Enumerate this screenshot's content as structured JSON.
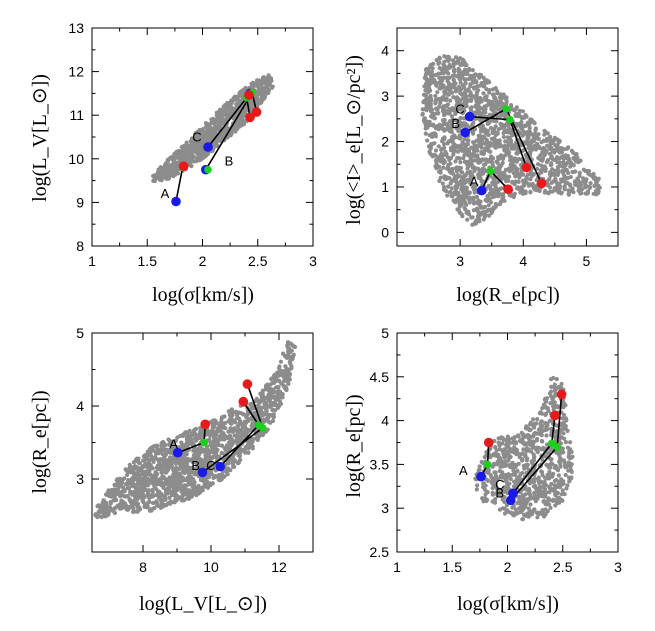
{
  "figure": {
    "description_type": "four-panel scatter of galaxy scaling relations"
  },
  "colors": {
    "cloud": "#8c8c8c",
    "line": "#000000",
    "blue": "#1a1ae6",
    "red": "#e61a1a",
    "green": "#1ad21a"
  },
  "chart_data": [
    {
      "type": "scatter",
      "id": "p1",
      "title": "",
      "xlabel": "log(σ[km/s])",
      "ylabel": "log(L_V[L_⊙])",
      "xlim": [
        1,
        3
      ],
      "ylim": [
        8,
        13
      ],
      "xticks": [
        "1",
        "1.5",
        "2",
        "2.5",
        "3"
      ],
      "yticks": [
        "8",
        "9",
        "10",
        "11",
        "12",
        "13"
      ],
      "cloud": {
        "polygon": [
          [
            1.55,
            9.45
          ],
          [
            1.7,
            9.55
          ],
          [
            1.95,
            9.9
          ],
          [
            2.2,
            10.4
          ],
          [
            2.45,
            10.95
          ],
          [
            2.55,
            11.35
          ],
          [
            2.65,
            11.7
          ],
          [
            2.6,
            11.95
          ],
          [
            2.45,
            11.75
          ],
          [
            2.25,
            11.35
          ],
          [
            2.0,
            10.75
          ],
          [
            1.8,
            10.25
          ],
          [
            1.65,
            9.9
          ],
          [
            1.55,
            9.6
          ]
        ],
        "count": 900
      },
      "series": [
        {
          "name": "blue",
          "points": [
            [
              1.76,
              9.02
            ],
            [
              2.03,
              9.75
            ],
            [
              2.05,
              10.27
            ],
            [
              2.43,
              11.5
            ]
          ]
        },
        {
          "name": "green",
          "points": [
            [
              1.82,
              9.8
            ],
            [
              2.05,
              9.75
            ],
            [
              2.4,
              11.4
            ],
            [
              2.45,
              11.52
            ]
          ]
        },
        {
          "name": "red",
          "points": [
            [
              1.83,
              9.83
            ],
            [
              2.43,
              10.95
            ],
            [
              2.49,
              11.07
            ],
            [
              2.42,
              11.46
            ]
          ]
        }
      ],
      "tracks": [
        {
          "label": "A",
          "points": [
            [
              1.76,
              9.02
            ],
            [
              1.82,
              9.8
            ],
            [
              1.83,
              9.83
            ]
          ]
        },
        {
          "label": "B",
          "points": [
            [
              2.03,
              9.75
            ],
            [
              2.45,
              11.52
            ],
            [
              2.49,
              11.07
            ]
          ]
        },
        {
          "label": "C",
          "points": [
            [
              2.05,
              10.27
            ],
            [
              2.4,
              11.4
            ],
            [
              2.43,
              10.95
            ]
          ]
        }
      ],
      "labels": [
        {
          "text": "A",
          "at": [
            1.66,
            9.1
          ]
        },
        {
          "text": "B",
          "at": [
            2.24,
            9.85
          ]
        },
        {
          "text": "C",
          "at": [
            1.95,
            10.4
          ]
        }
      ]
    },
    {
      "type": "scatter",
      "id": "p2",
      "title": "",
      "xlabel": "log(R_e[pc])",
      "ylabel": "log(<I>_e[L_⊙/pc²])",
      "xlim": [
        2,
        5.5
      ],
      "ylim": [
        -0.3,
        4.5
      ],
      "xticks": [
        "3",
        "4",
        "5"
      ],
      "yticks": [
        "0",
        "1",
        "2",
        "3",
        "4"
      ],
      "cloud": {
        "polygon": [
          [
            2.45,
            3.6
          ],
          [
            2.7,
            3.9
          ],
          [
            3.0,
            3.85
          ],
          [
            3.4,
            3.4
          ],
          [
            3.8,
            2.9
          ],
          [
            4.3,
            2.3
          ],
          [
            4.8,
            1.8
          ],
          [
            5.25,
            1.15
          ],
          [
            5.2,
            0.8
          ],
          [
            4.7,
            0.8
          ],
          [
            4.2,
            0.9
          ],
          [
            3.8,
            0.75
          ],
          [
            3.4,
            0.3
          ],
          [
            3.2,
            0.15
          ],
          [
            3.0,
            0.4
          ],
          [
            2.7,
            1.0
          ],
          [
            2.5,
            1.8
          ],
          [
            2.4,
            2.6
          ]
        ],
        "count": 1800
      },
      "series": [
        {
          "name": "blue",
          "points": [
            [
              3.34,
              0.92
            ],
            [
              3.08,
              2.2
            ],
            [
              3.15,
              2.55
            ]
          ]
        },
        {
          "name": "green",
          "points": [
            [
              3.48,
              1.35
            ],
            [
              3.73,
              2.72
            ],
            [
              3.79,
              2.48
            ]
          ]
        },
        {
          "name": "red",
          "points": [
            [
              3.76,
              0.95
            ],
            [
              4.05,
              1.43
            ],
            [
              4.29,
              1.08
            ]
          ]
        }
      ],
      "tracks": [
        {
          "label": "A",
          "points": [
            [
              3.34,
              0.92
            ],
            [
              3.48,
              1.35
            ],
            [
              3.76,
              0.95
            ]
          ]
        },
        {
          "label": "B",
          "points": [
            [
              3.08,
              2.2
            ],
            [
              3.73,
              2.72
            ],
            [
              4.29,
              1.08
            ]
          ]
        },
        {
          "label": "C",
          "points": [
            [
              3.15,
              2.55
            ],
            [
              3.79,
              2.48
            ],
            [
              4.05,
              1.43
            ]
          ]
        }
      ],
      "labels": [
        {
          "text": "A",
          "at": [
            3.22,
            1.02
          ]
        },
        {
          "text": "B",
          "at": [
            2.93,
            2.3
          ]
        },
        {
          "text": "C",
          "at": [
            3.0,
            2.62
          ]
        }
      ]
    },
    {
      "type": "scatter",
      "id": "p3",
      "title": "",
      "xlabel": "log(L_V[L_⊙])",
      "ylabel": "log(R_e[pc])",
      "xlim": [
        6.5,
        13
      ],
      "ylim": [
        2,
        5
      ],
      "xticks": [
        "8",
        "10",
        "12"
      ],
      "yticks": [
        "3",
        "4",
        "5"
      ],
      "cloud": {
        "polygon": [
          [
            6.6,
            2.45
          ],
          [
            7.4,
            2.55
          ],
          [
            8.2,
            2.55
          ],
          [
            9.5,
            2.75
          ],
          [
            10.5,
            3.05
          ],
          [
            11.2,
            3.4
          ],
          [
            11.8,
            3.75
          ],
          [
            12.3,
            4.3
          ],
          [
            12.5,
            4.85
          ],
          [
            12.25,
            4.9
          ],
          [
            11.9,
            4.45
          ],
          [
            11.3,
            4.1
          ],
          [
            10.6,
            3.95
          ],
          [
            9.8,
            3.75
          ],
          [
            9.0,
            3.6
          ],
          [
            8.3,
            3.45
          ],
          [
            7.6,
            3.2
          ],
          [
            7.0,
            2.85
          ],
          [
            6.6,
            2.6
          ]
        ],
        "count": 2400
      },
      "series": [
        {
          "name": "blue",
          "points": [
            [
              9.02,
              3.36
            ],
            [
              9.75,
              3.09
            ],
            [
              10.27,
              3.17
            ]
          ]
        },
        {
          "name": "green",
          "points": [
            [
              9.8,
              3.5
            ],
            [
              11.4,
              3.74
            ],
            [
              11.52,
              3.7
            ]
          ]
        },
        {
          "name": "red",
          "points": [
            [
              9.83,
              3.75
            ],
            [
              10.95,
              4.06
            ],
            [
              11.07,
              4.3
            ]
          ]
        }
      ],
      "tracks": [
        {
          "label": "A",
          "points": [
            [
              9.02,
              3.36
            ],
            [
              9.8,
              3.5
            ],
            [
              9.83,
              3.75
            ]
          ]
        },
        {
          "label": "B",
          "points": [
            [
              9.75,
              3.09
            ],
            [
              11.52,
              3.7
            ],
            [
              11.07,
              4.3
            ]
          ]
        },
        {
          "label": "C",
          "points": [
            [
              10.27,
              3.17
            ],
            [
              11.4,
              3.74
            ],
            [
              10.95,
              4.06
            ]
          ]
        }
      ],
      "labels": [
        {
          "text": "A",
          "at": [
            8.9,
            3.42
          ]
        },
        {
          "text": "B",
          "at": [
            9.55,
            3.12
          ]
        },
        {
          "text": "C",
          "at": [
            10.0,
            3.12
          ]
        }
      ]
    },
    {
      "type": "scatter",
      "id": "p4",
      "title": "",
      "xlabel": "log(σ[km/s])",
      "ylabel": "log(R_e[pc])",
      "xlim": [
        1,
        3
      ],
      "ylim": [
        2.5,
        5
      ],
      "xticks": [
        "1",
        "1.5",
        "2",
        "2.5",
        "3"
      ],
      "yticks": [
        "2.5",
        "3",
        "3.5",
        "4",
        "4.5",
        "5"
      ],
      "cloud": {
        "polygon": [
          [
            1.75,
            3.1
          ],
          [
            1.95,
            2.95
          ],
          [
            2.15,
            2.85
          ],
          [
            2.35,
            2.9
          ],
          [
            2.55,
            3.15
          ],
          [
            2.6,
            3.5
          ],
          [
            2.55,
            3.95
          ],
          [
            2.5,
            4.45
          ],
          [
            2.4,
            4.5
          ],
          [
            2.3,
            4.1
          ],
          [
            2.1,
            3.85
          ],
          [
            1.9,
            3.8
          ],
          [
            1.75,
            3.55
          ],
          [
            1.7,
            3.3
          ]
        ],
        "count": 800
      },
      "series": [
        {
          "name": "blue",
          "points": [
            [
              1.76,
              3.36
            ],
            [
              2.03,
              3.09
            ],
            [
              2.05,
              3.17
            ]
          ]
        },
        {
          "name": "green",
          "points": [
            [
              1.82,
              3.5
            ],
            [
              2.4,
              3.74
            ],
            [
              2.45,
              3.7
            ]
          ]
        },
        {
          "name": "red",
          "points": [
            [
              1.83,
              3.75
            ],
            [
              2.43,
              4.06
            ],
            [
              2.49,
              4.3
            ]
          ]
        }
      ],
      "tracks": [
        {
          "label": "A",
          "points": [
            [
              1.76,
              3.36
            ],
            [
              1.82,
              3.5
            ],
            [
              1.83,
              3.75
            ]
          ]
        },
        {
          "label": "B",
          "points": [
            [
              2.03,
              3.09
            ],
            [
              2.45,
              3.7
            ],
            [
              2.49,
              4.3
            ]
          ]
        },
        {
          "label": "C",
          "points": [
            [
              2.05,
              3.17
            ],
            [
              2.4,
              3.74
            ],
            [
              2.43,
              4.06
            ]
          ]
        }
      ],
      "labels": [
        {
          "text": "A",
          "at": [
            1.6,
            3.38
          ]
        },
        {
          "text": "B",
          "at": [
            1.93,
            3.12
          ]
        },
        {
          "text": "C",
          "at": [
            1.93,
            3.22
          ]
        }
      ]
    }
  ]
}
